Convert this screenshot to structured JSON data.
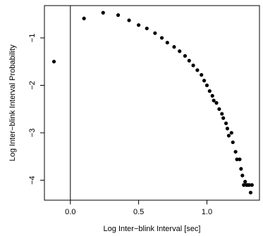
{
  "chart_data": {
    "type": "scatter",
    "title": "",
    "xlabel": "Log Inter−blink Interval [sec]",
    "ylabel": "Log Inter−blink Interval Probability",
    "xlim": [
      -0.19,
      1.385
    ],
    "ylim": [
      -4.42,
      -0.32
    ],
    "xticks": [
      0.0,
      0.5,
      1.0
    ],
    "xtick_labels": [
      "0.0",
      "0.5",
      "1.0"
    ],
    "yticks": [
      -1,
      -2,
      -3,
      -4
    ],
    "ytick_labels": [
      "−1",
      "−2",
      "−3",
      "−4"
    ],
    "vline_x": 0.0,
    "grid": false,
    "legend": "none",
    "marker_color": "#000000",
    "points": [
      [
        -0.12,
        -1.5
      ],
      [
        0.1,
        -0.59
      ],
      [
        0.24,
        -0.47
      ],
      [
        0.35,
        -0.52
      ],
      [
        0.43,
        -0.63
      ],
      [
        0.5,
        -0.73
      ],
      [
        0.56,
        -0.8
      ],
      [
        0.62,
        -0.9
      ],
      [
        0.67,
        -1.0
      ],
      [
        0.71,
        -1.1
      ],
      [
        0.76,
        -1.19
      ],
      [
        0.8,
        -1.28
      ],
      [
        0.84,
        -1.38
      ],
      [
        0.87,
        -1.48
      ],
      [
        0.9,
        -1.58
      ],
      [
        0.93,
        -1.68
      ],
      [
        0.96,
        -1.78
      ],
      [
        0.98,
        -1.9
      ],
      [
        1.0,
        -2.0
      ],
      [
        1.02,
        -2.12
      ],
      [
        1.04,
        -2.22
      ],
      [
        1.05,
        -2.32
      ],
      [
        1.07,
        -2.37
      ],
      [
        1.09,
        -2.5
      ],
      [
        1.11,
        -2.6
      ],
      [
        1.12,
        -2.69
      ],
      [
        1.14,
        -2.8
      ],
      [
        1.15,
        -2.91
      ],
      [
        1.16,
        -3.06
      ],
      [
        1.18,
        -3.0
      ],
      [
        1.19,
        -3.2
      ],
      [
        1.21,
        -3.4
      ],
      [
        1.22,
        -3.56
      ],
      [
        1.24,
        -3.56
      ],
      [
        1.25,
        -3.76
      ],
      [
        1.26,
        -3.9
      ],
      [
        1.27,
        -4.1
      ],
      [
        1.28,
        -4.03
      ],
      [
        1.29,
        -4.1
      ],
      [
        1.3,
        -4.1
      ],
      [
        1.31,
        -4.1
      ],
      [
        1.32,
        -4.26
      ],
      [
        1.33,
        -4.1
      ]
    ]
  }
}
